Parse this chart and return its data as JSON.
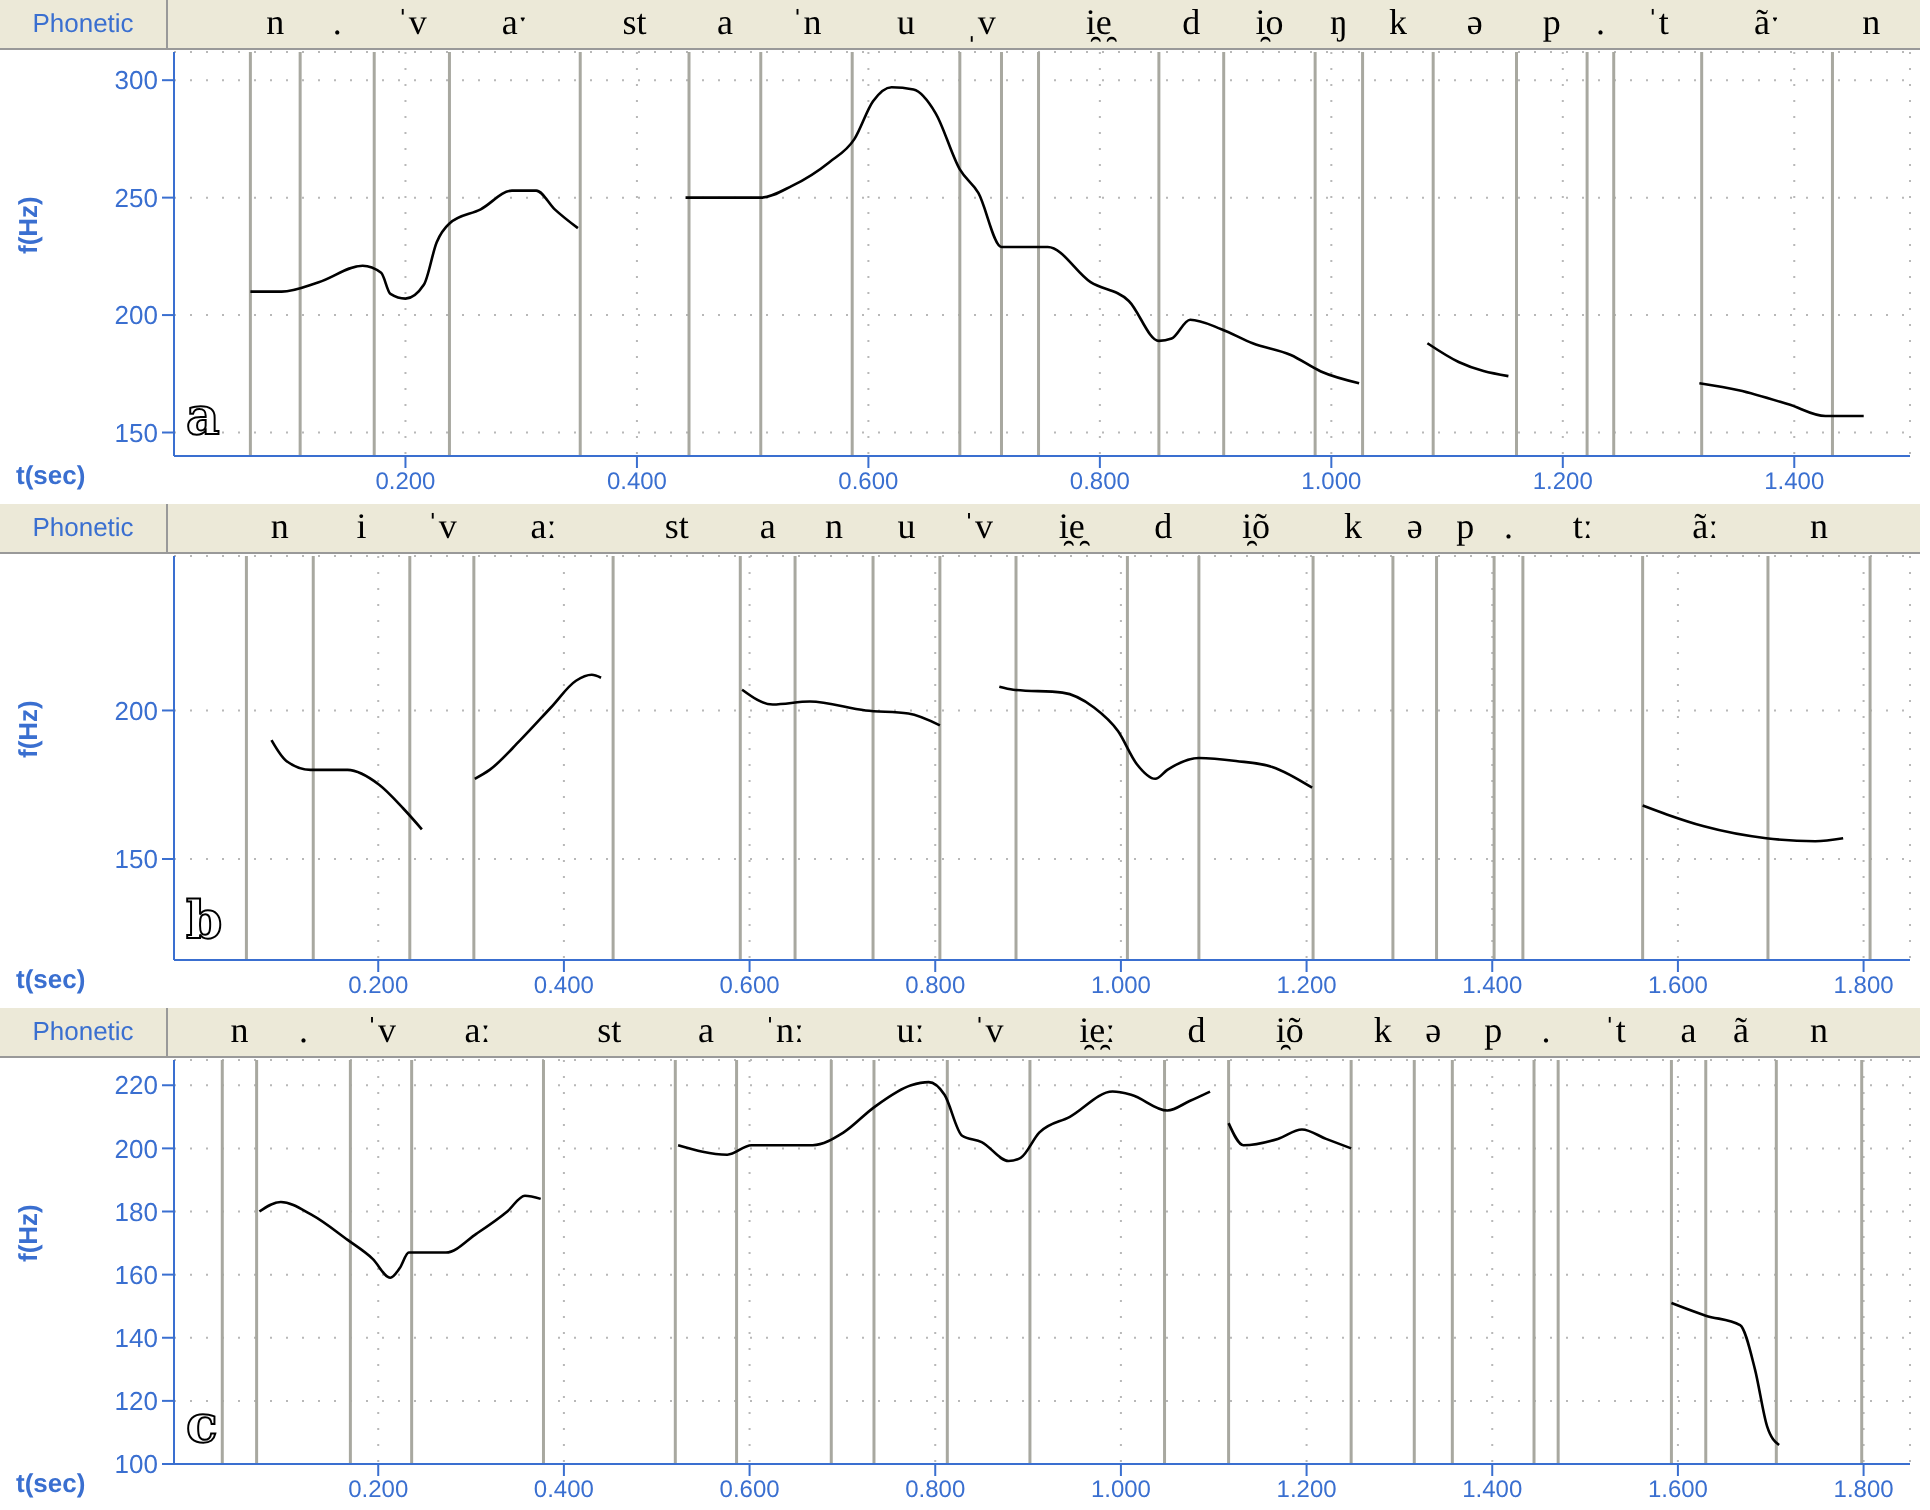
{
  "chart_data": [
    {
      "type": "line",
      "xlabel": "t(sec)",
      "ylabel": "f(Hz)",
      "xlim": [
        0,
        1.5
      ],
      "xticks": [
        {
          "value": 0.2,
          "label": "0.200"
        },
        {
          "value": 0.4,
          "label": "0.400"
        },
        {
          "value": 0.6,
          "label": "0.600"
        },
        {
          "value": 0.8,
          "label": "0.800"
        },
        {
          "value": 1.0,
          "label": "1.000"
        },
        {
          "value": 1.2,
          "label": "1.200"
        },
        {
          "value": 1.4,
          "label": "1.400"
        }
      ],
      "ylim": [
        140,
        312
      ],
      "yticks": [
        150,
        200,
        250,
        300
      ],
      "grid": true,
      "series": [
        {
          "color": "#000000",
          "x": [
            0.066,
            0.093,
            0.125,
            0.163,
            0.179,
            0.187,
            0.2,
            0.216,
            0.227,
            0.238,
            0.265,
            0.292,
            0.313,
            0.329,
            0.349
          ],
          "values": [
            210,
            210,
            214,
            221,
            218,
            209,
            207,
            213,
            231,
            239,
            245,
            253,
            253,
            245,
            237
          ]
        },
        {
          "color": "#000000",
          "x": [
            0.442,
            0.507,
            0.534,
            0.566,
            0.588,
            0.604,
            0.62,
            0.639,
            0.658,
            0.679,
            0.695,
            0.715,
            0.755,
            0.792,
            0.825,
            0.851,
            0.862,
            0.878,
            0.905,
            0.932,
            0.965,
            0.991,
            1.024
          ],
          "values": [
            250,
            250,
            255,
            265,
            275,
            291,
            297,
            296,
            286,
            262,
            252,
            229,
            229,
            214,
            206,
            189,
            190,
            198,
            194,
            188,
            183,
            176,
            171
          ]
        },
        {
          "color": "#000000",
          "x": [
            1.083,
            1.11,
            1.153
          ],
          "values": [
            188,
            180,
            174
          ]
        },
        {
          "color": "#000000",
          "x": [
            1.318,
            1.352,
            1.395,
            1.427,
            1.46
          ],
          "values": [
            171,
            168,
            162,
            157,
            157
          ]
        }
      ],
      "ref_lines": [
        {
          "axis": "x",
          "value": 0.066,
          "color": "#a8a8a0",
          "label": "n"
        },
        {
          "axis": "x",
          "value": 0.109,
          "color": "#a8a8a0",
          "label": "."
        },
        {
          "axis": "x",
          "value": 0.173,
          "color": "#a8a8a0",
          "label": "ˈv"
        },
        {
          "axis": "x",
          "value": 0.238,
          "color": "#a8a8a0",
          "label": "aˑ"
        },
        {
          "axis": "x",
          "value": 0.351,
          "color": "#a8a8a0",
          "label": "st"
        },
        {
          "axis": "x",
          "value": 0.445,
          "color": "#a8a8a0",
          "label": "a"
        },
        {
          "axis": "x",
          "value": 0.507,
          "color": "#a8a8a0",
          "label": "ˈn"
        },
        {
          "axis": "x",
          "value": 0.586,
          "color": "#a8a8a0",
          "label": "u"
        },
        {
          "axis": "x",
          "value": 0.679,
          "color": "#a8a8a0",
          "label": "ˌv"
        },
        {
          "axis": "x",
          "value": 0.715,
          "color": "#a8a8a0"
        },
        {
          "axis": "x",
          "value": 0.747,
          "color": "#a8a8a0",
          "label": "i̯e̯"
        },
        {
          "axis": "x",
          "value": 0.851,
          "color": "#a8a8a0",
          "label": "d"
        },
        {
          "axis": "x",
          "value": 0.907,
          "color": "#a8a8a0",
          "label": "i̯o"
        },
        {
          "axis": "x",
          "value": 0.986,
          "color": "#a8a8a0",
          "label": "ŋ"
        },
        {
          "axis": "x",
          "value": 1.027,
          "color": "#a8a8a0",
          "label": "k"
        },
        {
          "axis": "x",
          "value": 1.088,
          "color": "#a8a8a0",
          "label": "ə"
        },
        {
          "axis": "x",
          "value": 1.16,
          "color": "#a8a8a0",
          "label": "p"
        },
        {
          "axis": "x",
          "value": 1.221,
          "color": "#a8a8a0",
          "label": "."
        },
        {
          "axis": "x",
          "value": 1.244,
          "color": "#a8a8a0",
          "label": "ˈt"
        },
        {
          "axis": "x",
          "value": 1.32,
          "color": "#a8a8a0",
          "label": "ãˑ"
        },
        {
          "axis": "x",
          "value": 1.433,
          "color": "#a8a8a0",
          "label": "n"
        }
      ],
      "annotations": [
        "Phonetic",
        "a"
      ]
    },
    {
      "type": "line",
      "xlabel": "t(sec)",
      "ylabel": "f(Hz)",
      "xlim": [
        -0.02,
        1.85
      ],
      "xticks": [
        {
          "value": 0.2,
          "label": "0.200"
        },
        {
          "value": 0.4,
          "label": "0.400"
        },
        {
          "value": 0.6,
          "label": "0.600"
        },
        {
          "value": 0.8,
          "label": "0.800"
        },
        {
          "value": 1.0,
          "label": "1.000"
        },
        {
          "value": 1.2,
          "label": "1.200"
        },
        {
          "value": 1.4,
          "label": "1.400"
        },
        {
          "value": 1.6,
          "label": "1.600"
        },
        {
          "value": 1.8,
          "label": "1.800"
        }
      ],
      "ylim": [
        116,
        252
      ],
      "yticks": [
        150,
        200
      ],
      "grid": true,
      "series": [
        {
          "color": "#000000",
          "x": [
            0.085,
            0.101,
            0.127,
            0.167,
            0.201,
            0.227,
            0.247
          ],
          "values": [
            190,
            183,
            180,
            180,
            175,
            167,
            160
          ]
        },
        {
          "color": "#000000",
          "x": [
            0.304,
            0.32,
            0.353,
            0.386,
            0.413,
            0.43,
            0.44
          ],
          "values": [
            177,
            180,
            190,
            201,
            210,
            212,
            211
          ]
        },
        {
          "color": "#000000",
          "x": [
            0.592,
            0.625,
            0.665,
            0.725,
            0.771,
            0.805
          ],
          "values": [
            207,
            202,
            203,
            200,
            199,
            195
          ]
        },
        {
          "color": "#000000",
          "x": [
            0.869,
            0.884,
            0.937,
            0.971,
            0.997,
            1.017,
            1.037,
            1.05,
            1.084,
            1.124,
            1.163,
            1.206
          ],
          "values": [
            208,
            207,
            206,
            201,
            193,
            182,
            177,
            180,
            184,
            183,
            181,
            174
          ]
        },
        {
          "color": "#000000",
          "x": [
            1.562,
            1.588,
            1.628,
            1.695,
            1.748,
            1.778
          ],
          "values": [
            168,
            165,
            161,
            157,
            156,
            157
          ]
        }
      ],
      "ref_lines": [
        {
          "axis": "x",
          "value": 0.058,
          "color": "#a8a8a0",
          "label": "n"
        },
        {
          "axis": "x",
          "value": 0.13,
          "color": "#a8a8a0",
          "label": "i"
        },
        {
          "axis": "x",
          "value": 0.234,
          "color": "#a8a8a0",
          "label": "ˈv"
        },
        {
          "axis": "x",
          "value": 0.303,
          "color": "#a8a8a0",
          "label": "aː"
        },
        {
          "axis": "x",
          "value": 0.453,
          "color": "#a8a8a0",
          "label": "st"
        },
        {
          "axis": "x",
          "value": 0.59,
          "color": "#a8a8a0",
          "label": "a"
        },
        {
          "axis": "x",
          "value": 0.649,
          "color": "#a8a8a0",
          "label": "n"
        },
        {
          "axis": "x",
          "value": 0.733,
          "color": "#a8a8a0",
          "label": "u"
        },
        {
          "axis": "x",
          "value": 0.805,
          "color": "#a8a8a0",
          "label": "ˈv"
        },
        {
          "axis": "x",
          "value": 0.887,
          "color": "#a8a8a0",
          "label": "i̯e̯"
        },
        {
          "axis": "x",
          "value": 1.007,
          "color": "#a8a8a0",
          "label": "d"
        },
        {
          "axis": "x",
          "value": 1.084,
          "color": "#a8a8a0",
          "label": "i̯õ"
        },
        {
          "axis": "x",
          "value": 1.207,
          "color": "#a8a8a0",
          "label": "k"
        },
        {
          "axis": "x",
          "value": 1.293,
          "color": "#a8a8a0",
          "label": "ə"
        },
        {
          "axis": "x",
          "value": 1.34,
          "color": "#a8a8a0",
          "label": "p"
        },
        {
          "axis": "x",
          "value": 1.402,
          "color": "#a8a8a0",
          "label": "."
        },
        {
          "axis": "x",
          "value": 1.433,
          "color": "#a8a8a0",
          "label": "tː"
        },
        {
          "axis": "x",
          "value": 1.562,
          "color": "#a8a8a0",
          "label": "ãː"
        },
        {
          "axis": "x",
          "value": 1.697,
          "color": "#a8a8a0",
          "label": "n"
        },
        {
          "axis": "x",
          "value": 1.807,
          "color": "#a8a8a0"
        }
      ],
      "annotations": [
        "Phonetic",
        "b"
      ]
    },
    {
      "type": "line",
      "xlabel": "t(sec)",
      "ylabel": "f(Hz)",
      "xlim": [
        -0.02,
        1.85
      ],
      "xticks": [
        {
          "value": 0.2,
          "label": "0.200"
        },
        {
          "value": 0.4,
          "label": "0.400"
        },
        {
          "value": 0.6,
          "label": "0.600"
        },
        {
          "value": 0.8,
          "label": "0.800"
        },
        {
          "value": 1.0,
          "label": "1.000"
        },
        {
          "value": 1.2,
          "label": "1.200"
        },
        {
          "value": 1.4,
          "label": "1.400"
        },
        {
          "value": 1.6,
          "label": "1.600"
        },
        {
          "value": 1.8,
          "label": "1.800"
        }
      ],
      "ylim": [
        100,
        228
      ],
      "yticks": [
        100,
        120,
        140,
        160,
        180,
        200,
        220
      ],
      "grid": true,
      "series": [
        {
          "color": "#000000",
          "x": [
            0.072,
            0.095,
            0.128,
            0.167,
            0.194,
            0.213,
            0.223,
            0.233,
            0.273,
            0.306,
            0.339,
            0.358,
            0.375
          ],
          "values": [
            180,
            183,
            179,
            171,
            165,
            159,
            162,
            167,
            167,
            173,
            180,
            185,
            184
          ]
        },
        {
          "color": "#000000",
          "x": [
            0.523,
            0.576,
            0.602,
            0.668,
            0.701,
            0.734,
            0.774,
            0.793,
            0.81,
            0.829,
            0.85,
            0.879,
            0.892,
            0.912,
            0.945,
            0.991,
            1.011,
            1.05,
            1.074,
            1.096
          ],
          "values": [
            201,
            198,
            201,
            201,
            205,
            213,
            220,
            221,
            217,
            204,
            202,
            196,
            197,
            205,
            210,
            218,
            217,
            212,
            215,
            218
          ]
        },
        {
          "color": "#000000",
          "x": [
            1.116,
            1.132,
            1.169,
            1.195,
            1.221,
            1.248
          ],
          "values": [
            208,
            201,
            203,
            206,
            203,
            200
          ]
        },
        {
          "color": "#000000",
          "x": [
            1.593,
            1.63,
            1.667,
            1.683,
            1.696,
            1.709
          ],
          "values": [
            151,
            147,
            144,
            130,
            112,
            106
          ]
        }
      ],
      "ref_lines": [
        {
          "axis": "x",
          "value": 0.032,
          "color": "#a8a8a0",
          "label": "n"
        },
        {
          "axis": "x",
          "value": 0.069,
          "color": "#a8a8a0",
          "label": "."
        },
        {
          "axis": "x",
          "value": 0.17,
          "color": "#a8a8a0",
          "label": "ˈv"
        },
        {
          "axis": "x",
          "value": 0.236,
          "color": "#a8a8a0",
          "label": "aː"
        },
        {
          "axis": "x",
          "value": 0.378,
          "color": "#a8a8a0",
          "label": "st"
        },
        {
          "axis": "x",
          "value": 0.52,
          "color": "#a8a8a0",
          "label": "a"
        },
        {
          "axis": "x",
          "value": 0.586,
          "color": "#a8a8a0",
          "label": "ˈnː"
        },
        {
          "axis": "x",
          "value": 0.688,
          "color": "#a8a8a0"
        },
        {
          "axis": "x",
          "value": 0.734,
          "color": "#a8a8a0",
          "label": "uː"
        },
        {
          "axis": "x",
          "value": 0.813,
          "color": "#a8a8a0",
          "label": "ˈv"
        },
        {
          "axis": "x",
          "value": 0.902,
          "color": "#a8a8a0",
          "label": "i̯e̯ː"
        },
        {
          "axis": "x",
          "value": 1.047,
          "color": "#a8a8a0",
          "label": "d"
        },
        {
          "axis": "x",
          "value": 1.116,
          "color": "#a8a8a0",
          "label": "i̯õ"
        },
        {
          "axis": "x",
          "value": 1.248,
          "color": "#a8a8a0",
          "label": "k"
        },
        {
          "axis": "x",
          "value": 1.316,
          "color": "#a8a8a0",
          "label": "ə"
        },
        {
          "axis": "x",
          "value": 1.357,
          "color": "#a8a8a0",
          "label": "p"
        },
        {
          "axis": "x",
          "value": 1.445,
          "color": "#a8a8a0",
          "label": "."
        },
        {
          "axis": "x",
          "value": 1.471,
          "color": "#a8a8a0",
          "label": "ˈt"
        },
        {
          "axis": "x",
          "value": 1.593,
          "color": "#a8a8a0",
          "label": "a"
        },
        {
          "axis": "x",
          "value": 1.63,
          "color": "#a8a8a0",
          "label": "ã"
        },
        {
          "axis": "x",
          "value": 1.706,
          "color": "#a8a8a0",
          "label": "n"
        },
        {
          "axis": "x",
          "value": 1.798,
          "color": "#a8a8a0"
        }
      ],
      "annotations": [
        "Phonetic",
        "c"
      ]
    }
  ]
}
